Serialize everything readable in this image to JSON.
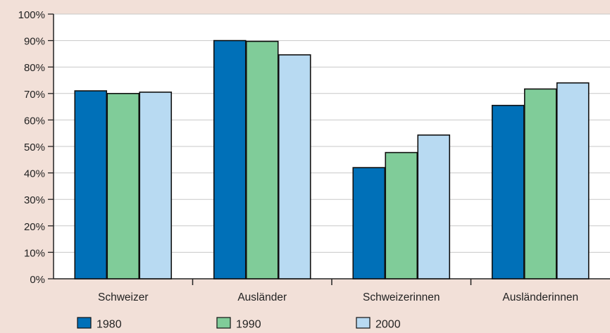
{
  "chart_data": {
    "type": "bar",
    "title": "",
    "xlabel": "",
    "ylabel": "",
    "ylim": [
      0,
      100
    ],
    "ytick_labels": [
      "0%",
      "10%",
      "20%",
      "30%",
      "40%",
      "50%",
      "60%",
      "70%",
      "80%",
      "90%",
      "100%"
    ],
    "categories": [
      "Schweizer",
      "Ausländer",
      "Schweizerinnen",
      "Ausländerinnen"
    ],
    "series": [
      {
        "name": "1980",
        "color": "#0070b8",
        "values": [
          71,
          90,
          42,
          65.5
        ]
      },
      {
        "name": "1990",
        "color": "#80cc99",
        "values": [
          70,
          89.7,
          47.7,
          71.7
        ]
      },
      {
        "name": "2000",
        "color": "#b8daf2",
        "values": [
          70.5,
          84.6,
          54.3,
          74
        ]
      }
    ],
    "grid": true,
    "legend_position": "bottom",
    "colors": {
      "background": "#f2e0d8",
      "plot_background": "#ffffff",
      "grid": "#c8c8c8",
      "bar_outline": "#111111"
    }
  }
}
